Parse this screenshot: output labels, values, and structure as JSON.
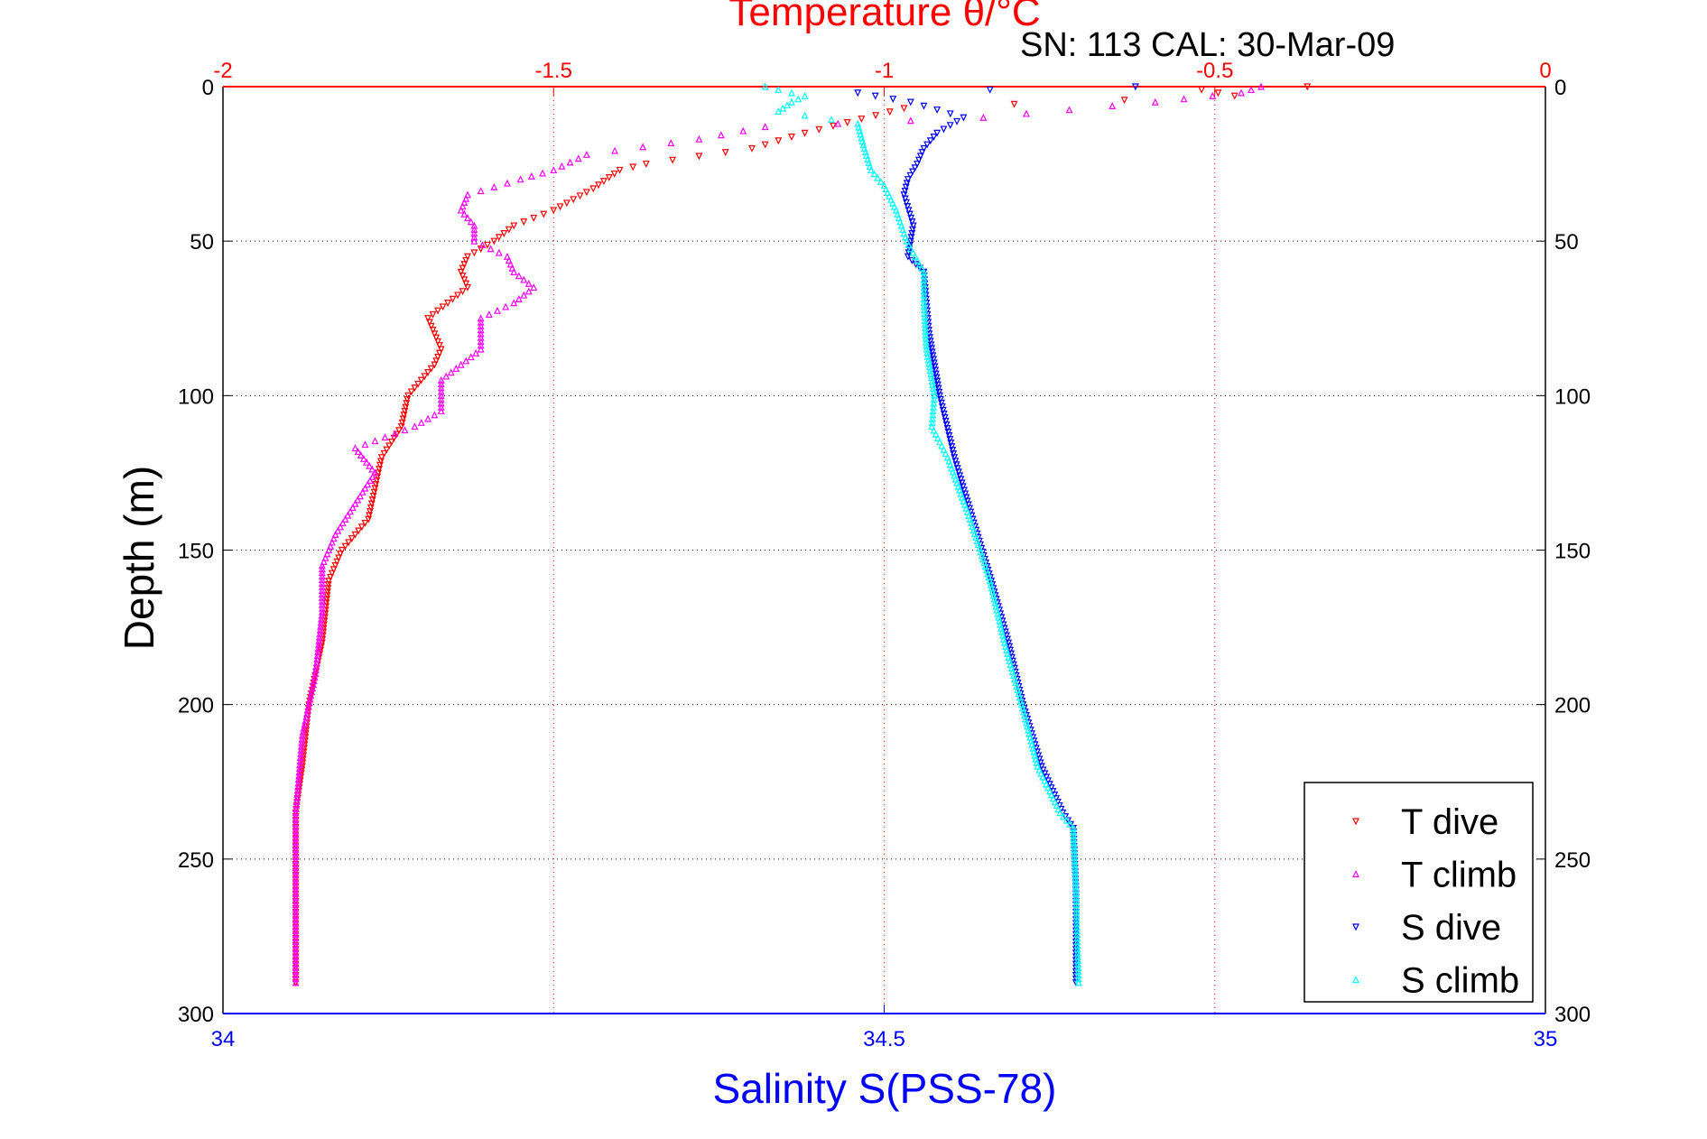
{
  "chart_data": {
    "type": "scatter",
    "title": "Temperature θ/°C",
    "subtitle": "SN: 113  CAL: 30-Mar-09",
    "xlabel": "Salinity S(PSS-78)",
    "ylabel": "Depth (m)",
    "x_top": {
      "label": "Temperature θ/°C",
      "lim": [
        -2,
        0
      ],
      "ticks": [
        -2,
        -1.5,
        -1,
        -0.5,
        0
      ],
      "tick_labels": [
        "-2",
        "-1.5",
        "-1",
        "-0.5",
        "0"
      ],
      "color": "#ff0000"
    },
    "x_bottom": {
      "label": "Salinity S(PSS-78)",
      "lim": [
        34,
        35
      ],
      "ticks": [
        34,
        34.5,
        35
      ],
      "tick_labels": [
        "34",
        "34.5",
        "35"
      ],
      "color": "#0000ff"
    },
    "y": {
      "lim": [
        0,
        300
      ],
      "reversed": true,
      "ticks": [
        0,
        50,
        100,
        150,
        200,
        250,
        300
      ],
      "tick_labels": [
        "0",
        "50",
        "100",
        "150",
        "200",
        "250",
        "300"
      ]
    },
    "grid": true,
    "legend_position": "bottom-right",
    "series": [
      {
        "name": "T dive",
        "axis": "temperature",
        "marker": "triangle-down",
        "color": "#ff0000",
        "points": [
          [
            0,
            -0.36
          ],
          [
            1,
            -0.52
          ],
          [
            3,
            -0.47
          ],
          [
            7,
            -0.97
          ],
          [
            15,
            -1.12
          ],
          [
            20,
            -1.2
          ],
          [
            25,
            -1.36
          ],
          [
            27,
            -1.4
          ],
          [
            33,
            -1.44
          ],
          [
            40,
            -1.5
          ],
          [
            45,
            -1.56
          ],
          [
            50,
            -1.59
          ],
          [
            55,
            -1.63
          ],
          [
            60,
            -1.64
          ],
          [
            65,
            -1.63
          ],
          [
            70,
            -1.66
          ],
          [
            75,
            -1.69
          ],
          [
            80,
            -1.68
          ],
          [
            85,
            -1.67
          ],
          [
            90,
            -1.68
          ],
          [
            95,
            -1.7
          ],
          [
            100,
            -1.72
          ],
          [
            110,
            -1.73
          ],
          [
            120,
            -1.76
          ],
          [
            130,
            -1.77
          ],
          [
            140,
            -1.78
          ],
          [
            150,
            -1.82
          ],
          [
            160,
            -1.84
          ],
          [
            180,
            -1.85
          ],
          [
            200,
            -1.87
          ],
          [
            220,
            -1.88
          ],
          [
            235,
            -1.89
          ],
          [
            260,
            -1.89
          ],
          [
            290,
            -1.89
          ]
        ]
      },
      {
        "name": "T climb",
        "axis": "temperature",
        "marker": "triangle-up",
        "color": "#ff00ff",
        "points": [
          [
            0,
            -0.43
          ],
          [
            2,
            -0.46
          ],
          [
            5,
            -0.59
          ],
          [
            10,
            -0.85
          ],
          [
            13,
            -1.18
          ],
          [
            17,
            -1.28
          ],
          [
            22,
            -1.45
          ],
          [
            27,
            -1.5
          ],
          [
            30,
            -1.55
          ],
          [
            35,
            -1.63
          ],
          [
            40,
            -1.64
          ],
          [
            45,
            -1.62
          ],
          [
            50,
            -1.62
          ],
          [
            55,
            -1.57
          ],
          [
            60,
            -1.56
          ],
          [
            65,
            -1.53
          ],
          [
            70,
            -1.56
          ],
          [
            75,
            -1.61
          ],
          [
            85,
            -1.61
          ],
          [
            90,
            -1.64
          ],
          [
            95,
            -1.67
          ],
          [
            100,
            -1.67
          ],
          [
            105,
            -1.67
          ],
          [
            110,
            -1.71
          ],
          [
            117,
            -1.8
          ],
          [
            125,
            -1.77
          ],
          [
            135,
            -1.8
          ],
          [
            145,
            -1.83
          ],
          [
            155,
            -1.85
          ],
          [
            170,
            -1.85
          ],
          [
            190,
            -1.86
          ],
          [
            210,
            -1.88
          ],
          [
            235,
            -1.89
          ],
          [
            260,
            -1.89
          ],
          [
            290,
            -1.89
          ]
        ]
      },
      {
        "name": "S dive",
        "axis": "salinity",
        "marker": "triangle-down",
        "color": "#0000ff",
        "points": [
          [
            0,
            34.69
          ],
          [
            1,
            34.58
          ],
          [
            2,
            34.48
          ],
          [
            5,
            34.52
          ],
          [
            10,
            34.56
          ],
          [
            15,
            34.54
          ],
          [
            20,
            34.53
          ],
          [
            25,
            34.525
          ],
          [
            30,
            34.518
          ],
          [
            35,
            34.515
          ],
          [
            45,
            34.522
          ],
          [
            55,
            34.518
          ],
          [
            60,
            34.53
          ],
          [
            70,
            34.532
          ],
          [
            80,
            34.534
          ],
          [
            100,
            34.542
          ],
          [
            120,
            34.553
          ],
          [
            140,
            34.567
          ],
          [
            160,
            34.581
          ],
          [
            180,
            34.594
          ],
          [
            200,
            34.605
          ],
          [
            220,
            34.619
          ],
          [
            235,
            34.635
          ],
          [
            240,
            34.643
          ],
          [
            260,
            34.645
          ],
          [
            290,
            34.645
          ]
        ]
      },
      {
        "name": "S climb",
        "axis": "salinity",
        "marker": "triangle-up",
        "color": "#00ffff",
        "points": [
          [
            0,
            34.41
          ],
          [
            3,
            34.44
          ],
          [
            5,
            34.43
          ],
          [
            8,
            34.42
          ],
          [
            12,
            34.48
          ],
          [
            20,
            34.485
          ],
          [
            27,
            34.49
          ],
          [
            32,
            34.5
          ],
          [
            40,
            34.509
          ],
          [
            50,
            34.517
          ],
          [
            60,
            34.53
          ],
          [
            70,
            34.53
          ],
          [
            85,
            34.532
          ],
          [
            100,
            34.538
          ],
          [
            110,
            34.536
          ],
          [
            120,
            34.548
          ],
          [
            140,
            34.565
          ],
          [
            160,
            34.58
          ],
          [
            180,
            34.591
          ],
          [
            200,
            34.604
          ],
          [
            220,
            34.616
          ],
          [
            235,
            34.633
          ],
          [
            240,
            34.643
          ],
          [
            260,
            34.645
          ],
          [
            290,
            34.647
          ]
        ]
      }
    ]
  }
}
